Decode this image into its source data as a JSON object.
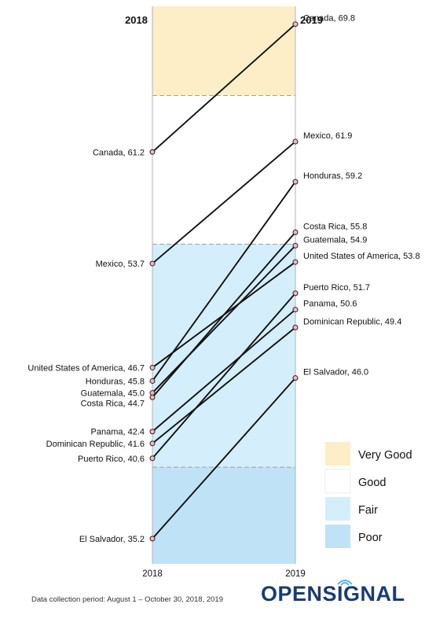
{
  "chart_data": {
    "type": "slope",
    "left_header": "2018",
    "right_header": "2019",
    "x_tick_labels": [
      "2018",
      "2019"
    ],
    "ylim": [
      33.5,
      71.0
    ],
    "bands": [
      {
        "name": "Very Good",
        "from": 65,
        "to": 80,
        "color": "#fdeec8"
      },
      {
        "name": "Good",
        "from": 55,
        "to": 65,
        "color": "#ffffff"
      },
      {
        "name": "Fair",
        "from": 40,
        "to": 55,
        "color": "#d4eefb"
      },
      {
        "name": "Poor",
        "from": 0,
        "to": 40,
        "color": "#c0e2f6"
      }
    ],
    "series": [
      {
        "name": "Canada",
        "v2018": 61.2,
        "v2019": 69.8,
        "label2018": "Canada, 61.2",
        "label2019": "Canada, 69.8"
      },
      {
        "name": "Mexico",
        "v2018": 53.7,
        "v2019": 61.9,
        "label2018": "Mexico, 53.7",
        "label2019": "Mexico, 61.9"
      },
      {
        "name": "United States of America",
        "v2018": 46.7,
        "v2019": 53.8,
        "label2018": "United States of America, 46.7",
        "label2019": "United States of America, 53.8"
      },
      {
        "name": "Honduras",
        "v2018": 45.8,
        "v2019": 59.2,
        "label2018": "Honduras, 45.8",
        "label2019": "Honduras, 59.2"
      },
      {
        "name": "Guatemala",
        "v2018": 45.0,
        "v2019": 54.9,
        "label2018": "Guatemala, 45.0",
        "label2019": "Guatemala, 54.9"
      },
      {
        "name": "Costa Rica",
        "v2018": 44.7,
        "v2019": 55.8,
        "label2018": "Costa Rica, 44.7",
        "label2019": "Costa Rica, 55.8"
      },
      {
        "name": "Panama",
        "v2018": 42.4,
        "v2019": 50.6,
        "label2018": "Panama, 42.4",
        "label2019": "Panama, 50.6"
      },
      {
        "name": "Dominican Republic",
        "v2018": 41.6,
        "v2019": 49.4,
        "label2018": "Dominican Republic, 41.6",
        "label2019": "Dominican Republic, 49.4"
      },
      {
        "name": "Puerto Rico",
        "v2018": 40.6,
        "v2019": 51.7,
        "label2018": "Puerto Rico, 40.6",
        "label2019": "Puerto Rico, 51.7"
      },
      {
        "name": "El Salvador",
        "v2018": 35.2,
        "v2019": 46.0,
        "label2018": "El Salvador, 35.2",
        "label2019": "El Salvador, 46.0"
      }
    ],
    "legend": [
      "Very Good",
      "Good",
      "Fair",
      "Poor"
    ],
    "legend_position": "bottom-right"
  },
  "footer": {
    "note": "Data collection period: August 1 – October  30, 2018, 2019",
    "logo_text": "OPENSIGNAL"
  },
  "colors": {
    "line": "#111111",
    "marker_fill": "#f4b8c4",
    "logo": "#1a3c6e"
  }
}
